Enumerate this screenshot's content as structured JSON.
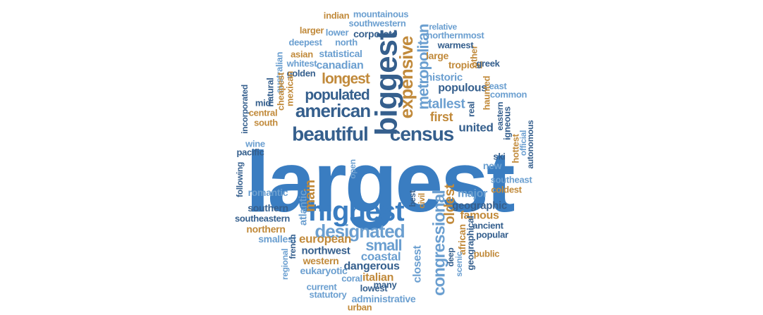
{
  "colors": {
    "dark": "#355f8d",
    "mid": "#3a7dc1",
    "light": "#6b9fd0",
    "tan": "#c18a3b"
  },
  "words": [
    {
      "text": "largest",
      "c": "mid"
    },
    {
      "text": "biggest",
      "c": "dark"
    },
    {
      "text": "highest",
      "c": "mid"
    },
    {
      "text": "designated",
      "c": "light"
    },
    {
      "text": "beautiful",
      "c": "dark"
    },
    {
      "text": "census",
      "c": "dark"
    },
    {
      "text": "american",
      "c": "dark"
    },
    {
      "text": "populated",
      "c": "dark"
    },
    {
      "text": "expensive",
      "c": "tan"
    },
    {
      "text": "metropolitan",
      "c": "light"
    },
    {
      "text": "congressional",
      "c": "light"
    },
    {
      "text": "longest",
      "c": "tan"
    },
    {
      "text": "small",
      "c": "light"
    },
    {
      "text": "european",
      "c": "tan"
    },
    {
      "text": "coastal",
      "c": "light"
    },
    {
      "text": "united",
      "c": "dark"
    },
    {
      "text": "tallest",
      "c": "light"
    },
    {
      "text": "first",
      "c": "tan"
    },
    {
      "text": "oldest",
      "c": "tan"
    },
    {
      "text": "canadian",
      "c": "light"
    },
    {
      "text": "main",
      "c": "tan"
    },
    {
      "text": "populous",
      "c": "dark"
    },
    {
      "text": "historic",
      "c": "light"
    },
    {
      "text": "major",
      "c": "light"
    },
    {
      "text": "dangerous",
      "c": "dark"
    },
    {
      "text": "northwest",
      "c": "dark"
    },
    {
      "text": "geographic",
      "c": "dark"
    },
    {
      "text": "famous",
      "c": "tan"
    },
    {
      "text": "italian",
      "c": "tan"
    },
    {
      "text": "closest",
      "c": "light"
    },
    {
      "text": "statistical",
      "c": "light"
    },
    {
      "text": "corporate",
      "c": "dark"
    },
    {
      "text": "romantic",
      "c": "light"
    },
    {
      "text": "southern",
      "c": "dark"
    },
    {
      "text": "atlantic",
      "c": "light"
    },
    {
      "text": "new",
      "c": "light"
    },
    {
      "text": "tropical",
      "c": "tan"
    },
    {
      "text": "large",
      "c": "tan"
    },
    {
      "text": "western",
      "c": "tan"
    },
    {
      "text": "smallest",
      "c": "light"
    },
    {
      "text": "northern",
      "c": "tan"
    },
    {
      "text": "southeastern",
      "c": "dark"
    },
    {
      "text": "eukaryotic",
      "c": "light"
    },
    {
      "text": "administrative",
      "c": "light"
    },
    {
      "text": "african",
      "c": "tan"
    },
    {
      "text": "geographical",
      "c": "dark"
    },
    {
      "text": "ancient",
      "c": "dark"
    },
    {
      "text": "popular",
      "c": "dark"
    },
    {
      "text": "public",
      "c": "tan"
    },
    {
      "text": "southeast",
      "c": "light"
    },
    {
      "text": "coldest",
      "c": "tan"
    },
    {
      "text": "autonomous",
      "c": "dark"
    },
    {
      "text": "official",
      "c": "light"
    },
    {
      "text": "hottest",
      "c": "tan"
    },
    {
      "text": "igneous",
      "c": "dark"
    },
    {
      "text": "eastern",
      "c": "dark"
    },
    {
      "text": "common",
      "c": "light"
    },
    {
      "text": "east",
      "c": "light"
    },
    {
      "text": "haunted",
      "c": "tan"
    },
    {
      "text": "real",
      "c": "dark"
    },
    {
      "text": "greek",
      "c": "dark"
    },
    {
      "text": "other",
      "c": "tan"
    },
    {
      "text": "warmest",
      "c": "dark"
    },
    {
      "text": "northernmost",
      "c": "light"
    },
    {
      "text": "relative",
      "c": "light"
    },
    {
      "text": "southwestern",
      "c": "light"
    },
    {
      "text": "mountainous",
      "c": "light"
    },
    {
      "text": "indian",
      "c": "tan"
    },
    {
      "text": "larger",
      "c": "tan"
    },
    {
      "text": "lower",
      "c": "light"
    },
    {
      "text": "deepest",
      "c": "light"
    },
    {
      "text": "north",
      "c": "light"
    },
    {
      "text": "asian",
      "c": "tan"
    },
    {
      "text": "whitest",
      "c": "light"
    },
    {
      "text": "golden",
      "c": "dark"
    },
    {
      "text": "australian",
      "c": "light"
    },
    {
      "text": "cheapest",
      "c": "tan"
    },
    {
      "text": "mexican",
      "c": "tan"
    },
    {
      "text": "natural",
      "c": "dark"
    },
    {
      "text": "mid",
      "c": "dark"
    },
    {
      "text": "incorporated",
      "c": "dark"
    },
    {
      "text": "central",
      "c": "tan"
    },
    {
      "text": "south",
      "c": "tan"
    },
    {
      "text": "wine",
      "c": "light"
    },
    {
      "text": "pacific",
      "c": "dark"
    },
    {
      "text": "following",
      "c": "dark"
    },
    {
      "text": "open",
      "c": "light"
    },
    {
      "text": "best",
      "c": "dark"
    },
    {
      "text": "civil",
      "c": "tan"
    },
    {
      "text": "ski",
      "c": "dark"
    },
    {
      "text": "french",
      "c": "dark"
    },
    {
      "text": "regional",
      "c": "light"
    },
    {
      "text": "deep",
      "c": "dark"
    },
    {
      "text": "scenic",
      "c": "light"
    },
    {
      "text": "current",
      "c": "light"
    },
    {
      "text": "coral",
      "c": "light"
    },
    {
      "text": "many",
      "c": "dark"
    },
    {
      "text": "lowest",
      "c": "dark"
    },
    {
      "text": "statutory",
      "c": "light"
    },
    {
      "text": "urban",
      "c": "tan"
    }
  ]
}
